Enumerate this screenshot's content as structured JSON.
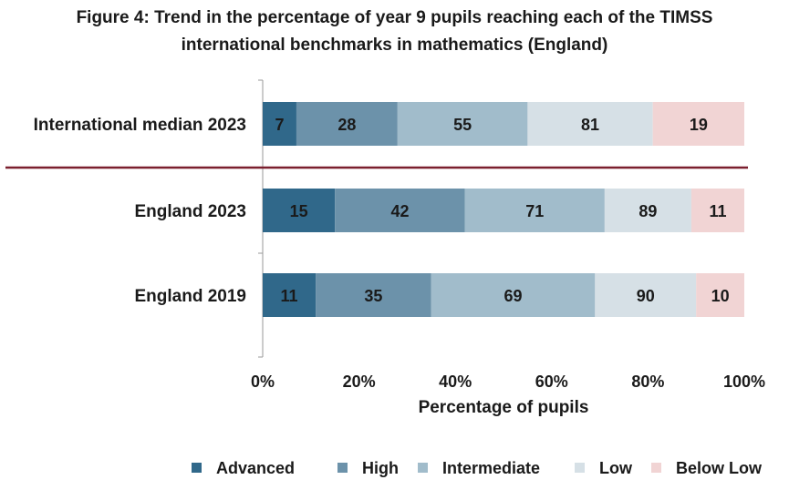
{
  "chart_data": {
    "type": "bar",
    "orientation": "horizontal",
    "stacked": true,
    "title_lines": [
      "Figure 4: Trend in the percentage of year 9 pupils reaching each of the TIMSS",
      "international benchmarks in mathematics (England)"
    ],
    "xlabel": "Percentage of pupils",
    "ylabel": "",
    "xlim": [
      0,
      100
    ],
    "x_ticks": [
      "0%",
      "20%",
      "40%",
      "60%",
      "80%",
      "100%"
    ],
    "x_tick_values": [
      0,
      20,
      40,
      60,
      80,
      100
    ],
    "grid": false,
    "legend_position": "bottom",
    "categories": [
      "International median 2023",
      "England 2023",
      "England 2019"
    ],
    "series": [
      {
        "name": "Advanced",
        "color": "#30688a",
        "segment_widths": [
          7,
          15,
          11
        ]
      },
      {
        "name": "High",
        "color": "#6c92aa",
        "segment_widths": [
          21,
          27,
          24
        ]
      },
      {
        "name": "Intermediate",
        "color": "#a1bccb",
        "segment_widths": [
          27,
          29,
          34
        ]
      },
      {
        "name": "Low",
        "color": "#d6e0e6",
        "segment_widths": [
          26,
          18,
          21
        ]
      },
      {
        "name": "Below Low",
        "color": "#f1d4d4",
        "segment_widths": [
          19,
          11,
          10
        ]
      }
    ],
    "data_labels": [
      [
        "7",
        "28",
        "55",
        "81",
        "19"
      ],
      [
        "15",
        "42",
        "71",
        "89",
        "11"
      ],
      [
        "11",
        "35",
        "69",
        "90",
        "10"
      ]
    ],
    "separator_after_category": "International median 2023",
    "separator_color": "#7b1f2e"
  }
}
